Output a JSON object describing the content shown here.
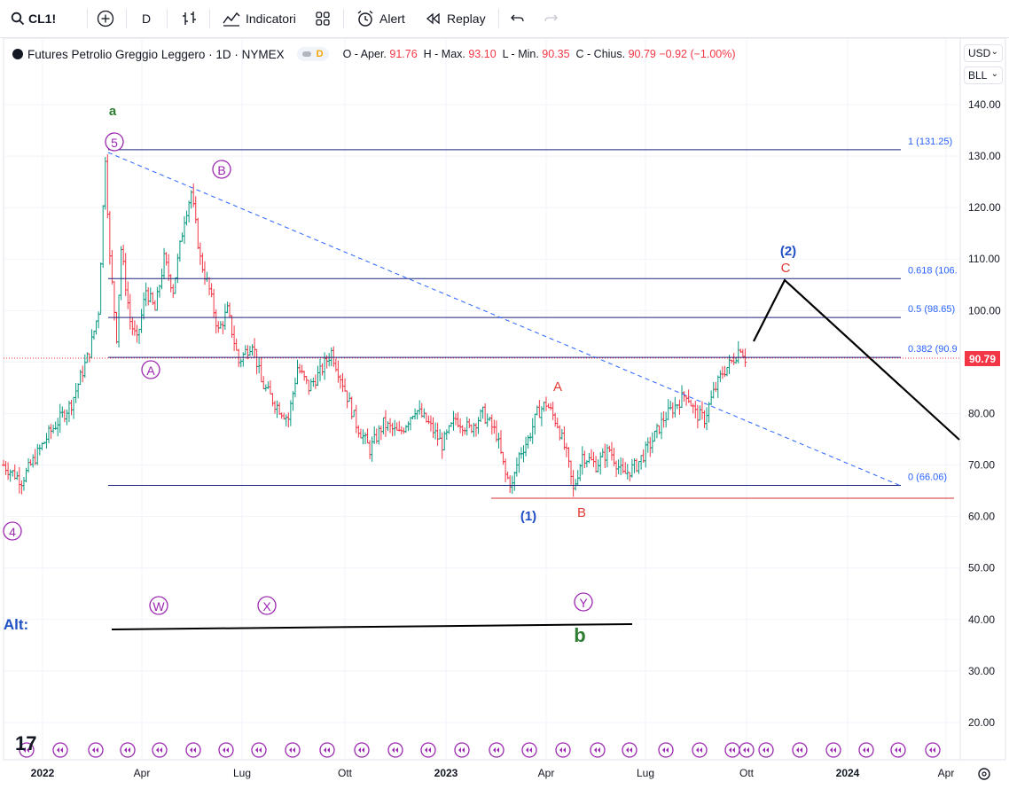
{
  "toolbar": {
    "symbol": "CL1!",
    "interval": "D",
    "indicators_label": "Indicatori",
    "alert_label": "Alert",
    "replay_label": "Replay"
  },
  "legend": {
    "title": "Futures Petrolio Greggio Leggero · 1D · NYMEX",
    "badge": "D",
    "open_label": "O - Aper.",
    "open": "91.76",
    "high_label": "H - Max.",
    "high": "93.10",
    "low_label": "L - Min.",
    "low": "90.35",
    "close_label": "C - Chius.",
    "close": "90.79",
    "change": "−0.92 (−1.00%)"
  },
  "selectors": {
    "currency": "USD",
    "unit": "BLL"
  },
  "colors": {
    "accent": "#2962ff",
    "down": "#f23645",
    "up": "#089981",
    "wave_purple": "#9c27b0",
    "wave_green": "#2e7d32",
    "wave_blue": "#1e4fc4",
    "wave_red": "#e53935",
    "fib_line": "#1a237e"
  },
  "chart_data": {
    "type": "candlestick",
    "symbol": "CL1!",
    "last_price": 90.79,
    "y_ticks": [
      140,
      130,
      120,
      110,
      100,
      90,
      80,
      70,
      60,
      50,
      40,
      30,
      20
    ],
    "ylim": [
      13,
      148
    ],
    "x_labels": [
      "2022",
      "Apr",
      "Lug",
      "Ott",
      "2023",
      "Apr",
      "Lug",
      "Ott",
      "2024",
      "Apr"
    ],
    "ohlc_path": [
      {
        "t": 0,
        "p": 70
      },
      {
        "t": 8,
        "p": 67
      },
      {
        "t": 20,
        "p": 76
      },
      {
        "t": 30,
        "p": 82
      },
      {
        "t": 38,
        "p": 92
      },
      {
        "t": 42,
        "p": 100
      },
      {
        "t": 44,
        "p": 120
      },
      {
        "t": 45,
        "p": 130
      },
      {
        "t": 47,
        "p": 110
      },
      {
        "t": 50,
        "p": 95
      },
      {
        "t": 52,
        "p": 112
      },
      {
        "t": 56,
        "p": 98
      },
      {
        "t": 59,
        "p": 94
      },
      {
        "t": 63,
        "p": 104
      },
      {
        "t": 67,
        "p": 100
      },
      {
        "t": 71,
        "p": 110
      },
      {
        "t": 75,
        "p": 104
      },
      {
        "t": 80,
        "p": 118
      },
      {
        "t": 83,
        "p": 123
      },
      {
        "t": 87,
        "p": 110
      },
      {
        "t": 91,
        "p": 104
      },
      {
        "t": 95,
        "p": 96
      },
      {
        "t": 99,
        "p": 100
      },
      {
        "t": 104,
        "p": 90
      },
      {
        "t": 110,
        "p": 94
      },
      {
        "t": 114,
        "p": 86
      },
      {
        "t": 120,
        "p": 82
      },
      {
        "t": 126,
        "p": 79
      },
      {
        "t": 130,
        "p": 89
      },
      {
        "t": 135,
        "p": 85
      },
      {
        "t": 140,
        "p": 88
      },
      {
        "t": 145,
        "p": 92
      },
      {
        "t": 150,
        "p": 86
      },
      {
        "t": 156,
        "p": 78
      },
      {
        "t": 162,
        "p": 73
      },
      {
        "t": 168,
        "p": 78
      },
      {
        "t": 175,
        "p": 76
      },
      {
        "t": 182,
        "p": 81
      },
      {
        "t": 188,
        "p": 78
      },
      {
        "t": 194,
        "p": 74
      },
      {
        "t": 200,
        "p": 79
      },
      {
        "t": 206,
        "p": 77
      },
      {
        "t": 212,
        "p": 80
      },
      {
        "t": 218,
        "p": 76
      },
      {
        "t": 222,
        "p": 68
      },
      {
        "t": 225,
        "p": 66
      },
      {
        "t": 228,
        "p": 72
      },
      {
        "t": 232,
        "p": 75
      },
      {
        "t": 236,
        "p": 80
      },
      {
        "t": 240,
        "p": 82
      },
      {
        "t": 245,
        "p": 78
      },
      {
        "t": 249,
        "p": 72
      },
      {
        "t": 252,
        "p": 65
      },
      {
        "t": 256,
        "p": 72
      },
      {
        "t": 262,
        "p": 70
      },
      {
        "t": 268,
        "p": 73
      },
      {
        "t": 274,
        "p": 68
      },
      {
        "t": 280,
        "p": 70
      },
      {
        "t": 286,
        "p": 74
      },
      {
        "t": 292,
        "p": 79
      },
      {
        "t": 298,
        "p": 82
      },
      {
        "t": 302,
        "p": 84
      },
      {
        "t": 306,
        "p": 80
      },
      {
        "t": 310,
        "p": 79
      },
      {
        "t": 314,
        "p": 84
      },
      {
        "t": 318,
        "p": 88
      },
      {
        "t": 322,
        "p": 90
      },
      {
        "t": 326,
        "p": 93
      },
      {
        "t": 328,
        "p": 90.79
      }
    ],
    "fib_levels": [
      {
        "label": "1 (131.25)",
        "value": 131.25
      },
      {
        "label": "0.618 (106.",
        "value": 106.2
      },
      {
        "label": "0.5 (98.65)",
        "value": 98.65
      },
      {
        "label": "0.382 (90.9",
        "value": 90.9
      },
      {
        "label": "0 (66.06)",
        "value": 66.06
      }
    ],
    "wave_labels": [
      {
        "text": "a",
        "style": "green"
      },
      {
        "text": "5",
        "style": "purple-circle"
      },
      {
        "text": "B",
        "style": "purple-circle"
      },
      {
        "text": "A",
        "style": "purple-circle"
      },
      {
        "text": "4",
        "style": "purple-circle"
      },
      {
        "text": "A",
        "style": "red"
      },
      {
        "text": "B",
        "style": "red"
      },
      {
        "text": "C",
        "style": "red"
      },
      {
        "text": "(1)",
        "style": "blue"
      },
      {
        "text": "(2)",
        "style": "blue"
      },
      {
        "text": "W",
        "style": "purple-circle"
      },
      {
        "text": "X",
        "style": "purple-circle"
      },
      {
        "text": "Y",
        "style": "purple-circle"
      },
      {
        "text": "Alt:",
        "style": "blue-bold"
      },
      {
        "text": "b",
        "style": "green-bold"
      }
    ]
  }
}
